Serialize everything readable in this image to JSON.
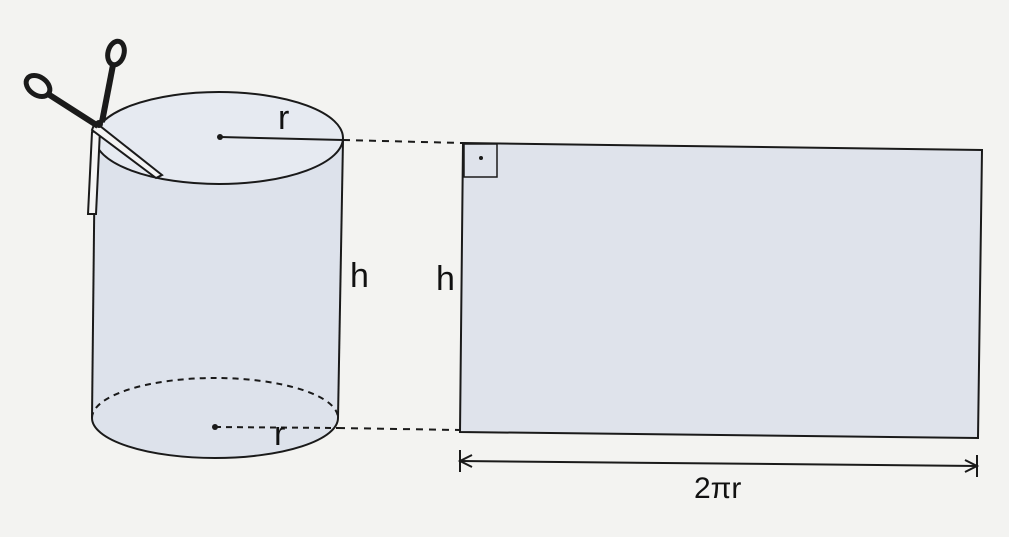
{
  "labels": {
    "top_radius": "r",
    "bottom_radius": "r",
    "cylinder_height": "h",
    "rect_height": "h",
    "rect_width": "2πr"
  },
  "colors": {
    "background": "#f3f3f1",
    "fill": "#dde2eb",
    "stroke": "#1a1a1a"
  },
  "icons": {
    "scissors": "scissors-icon",
    "right_angle": "right-angle-marker"
  }
}
